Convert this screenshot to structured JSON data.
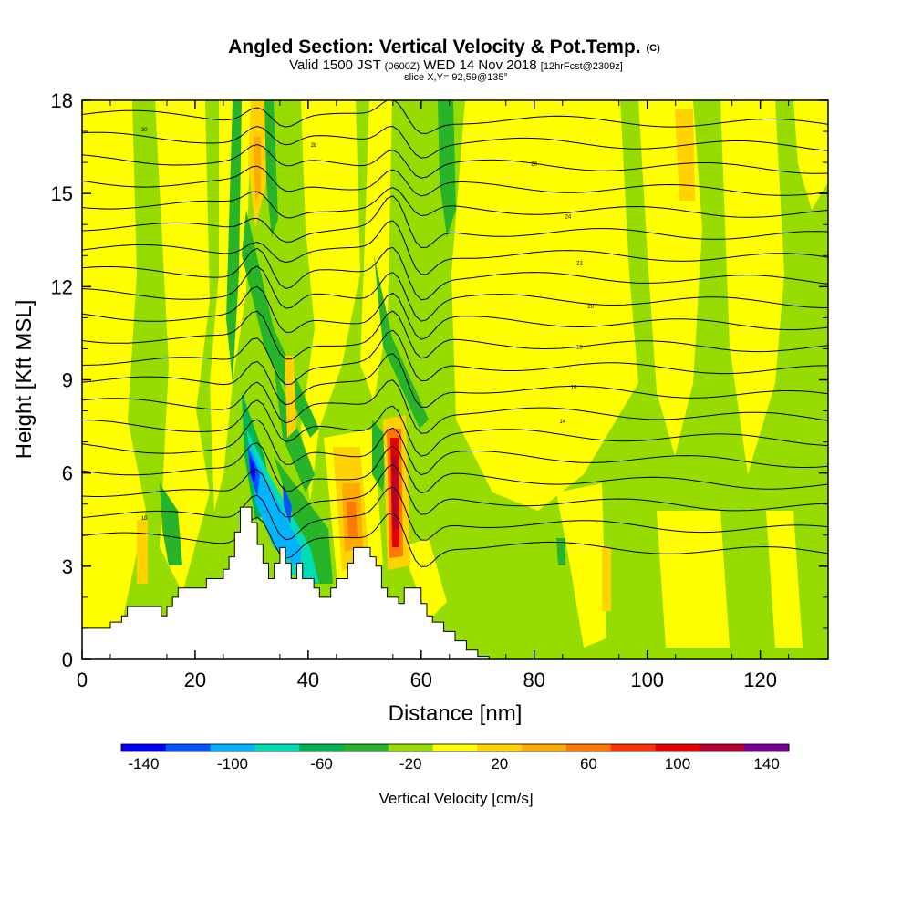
{
  "chart_data": {
    "type": "heatmap",
    "title": "Angled Section: Vertical Velocity & Pot.Temp.",
    "title_suffix": "(C)",
    "subtitle_parts": [
      "Valid 1500 JST",
      "(0600Z)",
      "WED 14 Nov 2018",
      "[12hrFcst@2309z]"
    ],
    "subtitle2": "slice X,Y= 92,59@135°",
    "xlabel": "Distance [nm]",
    "ylabel": "Height [Kft MSL]",
    "xlim": [
      0,
      132
    ],
    "ylim": [
      0,
      18
    ],
    "x_ticks": [
      0,
      20,
      40,
      60,
      80,
      100,
      120
    ],
    "y_ticks": [
      0,
      3,
      6,
      9,
      12,
      15,
      18
    ],
    "x_tick_labels": [
      "0",
      "20",
      "40",
      "60",
      "80",
      "100",
      "120"
    ],
    "y_tick_labels": [
      "0",
      "3",
      "6",
      "9",
      "12",
      "15",
      "18"
    ],
    "colorbar": {
      "label": "Vertical Velocity [cm/s]",
      "range": [
        -150,
        150
      ],
      "tick_values": [
        -140,
        -100,
        -60,
        -20,
        20,
        60,
        100,
        140
      ],
      "tick_labels": [
        "-140",
        "-100",
        "-60",
        "-20",
        "20",
        "60",
        "100",
        "140"
      ],
      "colors": [
        "#0000ff",
        "#0055ff",
        "#00b4ff",
        "#00dcb4",
        "#00b450",
        "#28b428",
        "#96dc00",
        "#ffff00",
        "#ffd200",
        "#ffaa00",
        "#ff7800",
        "#ff3200",
        "#e60000",
        "#b40032",
        "#780096"
      ]
    },
    "terrain_nm_kft": [
      [
        0,
        1.0
      ],
      [
        5,
        1.0
      ],
      [
        5,
        1.2
      ],
      [
        7,
        1.2
      ],
      [
        7,
        1.4
      ],
      [
        8,
        1.4
      ],
      [
        8,
        1.7
      ],
      [
        14,
        1.7
      ],
      [
        14,
        1.4
      ],
      [
        15,
        1.4
      ],
      [
        15,
        1.7
      ],
      [
        16,
        1.7
      ],
      [
        16,
        2.0
      ],
      [
        17,
        2.0
      ],
      [
        17,
        2.3
      ],
      [
        22,
        2.3
      ],
      [
        22,
        2.6
      ],
      [
        25,
        2.6
      ],
      [
        25,
        2.9
      ],
      [
        26,
        2.9
      ],
      [
        26,
        3.3
      ],
      [
        27,
        3.3
      ],
      [
        27,
        4.1
      ],
      [
        28,
        4.1
      ],
      [
        28,
        4.9
      ],
      [
        30,
        4.9
      ],
      [
        30,
        4.4
      ],
      [
        31,
        4.4
      ],
      [
        31,
        3.7
      ],
      [
        32,
        3.7
      ],
      [
        32,
        3.1
      ],
      [
        33,
        3.1
      ],
      [
        33,
        2.6
      ],
      [
        34,
        2.6
      ],
      [
        34,
        3.1
      ],
      [
        35,
        3.1
      ],
      [
        35,
        3.6
      ],
      [
        36,
        3.6
      ],
      [
        36,
        3.1
      ],
      [
        37,
        3.1
      ],
      [
        37,
        2.6
      ],
      [
        38,
        2.6
      ],
      [
        38,
        3.1
      ],
      [
        39,
        3.1
      ],
      [
        39,
        2.6
      ],
      [
        41,
        2.6
      ],
      [
        41,
        2.3
      ],
      [
        42,
        2.3
      ],
      [
        42,
        2.0
      ],
      [
        44,
        2.0
      ],
      [
        44,
        2.3
      ],
      [
        45,
        2.3
      ],
      [
        45,
        2.6
      ],
      [
        47,
        2.6
      ],
      [
        47,
        3.1
      ],
      [
        48,
        3.1
      ],
      [
        48,
        3.6
      ],
      [
        51,
        3.6
      ],
      [
        51,
        3.3
      ],
      [
        52,
        3.3
      ],
      [
        52,
        3.0
      ],
      [
        53,
        3.0
      ],
      [
        53,
        2.3
      ],
      [
        54,
        2.3
      ],
      [
        54,
        2.0
      ],
      [
        56,
        2.0
      ],
      [
        56,
        1.8
      ],
      [
        57,
        1.8
      ],
      [
        57,
        2.3
      ],
      [
        60,
        2.3
      ],
      [
        60,
        1.8
      ],
      [
        61,
        1.8
      ],
      [
        61,
        1.4
      ],
      [
        62,
        1.4
      ],
      [
        62,
        1.2
      ],
      [
        64,
        1.2
      ],
      [
        64,
        0.9
      ],
      [
        66,
        0.9
      ],
      [
        66,
        0.6
      ],
      [
        68,
        0.6
      ],
      [
        68,
        0.3
      ],
      [
        70,
        0.3
      ],
      [
        70,
        0.1
      ],
      [
        72,
        0.1
      ],
      [
        72,
        0
      ],
      [
        132,
        0
      ]
    ],
    "contour_labels": [
      "30",
      "28",
      "26",
      "24",
      "22",
      "20",
      "18",
      "16",
      "14",
      "10"
    ]
  }
}
